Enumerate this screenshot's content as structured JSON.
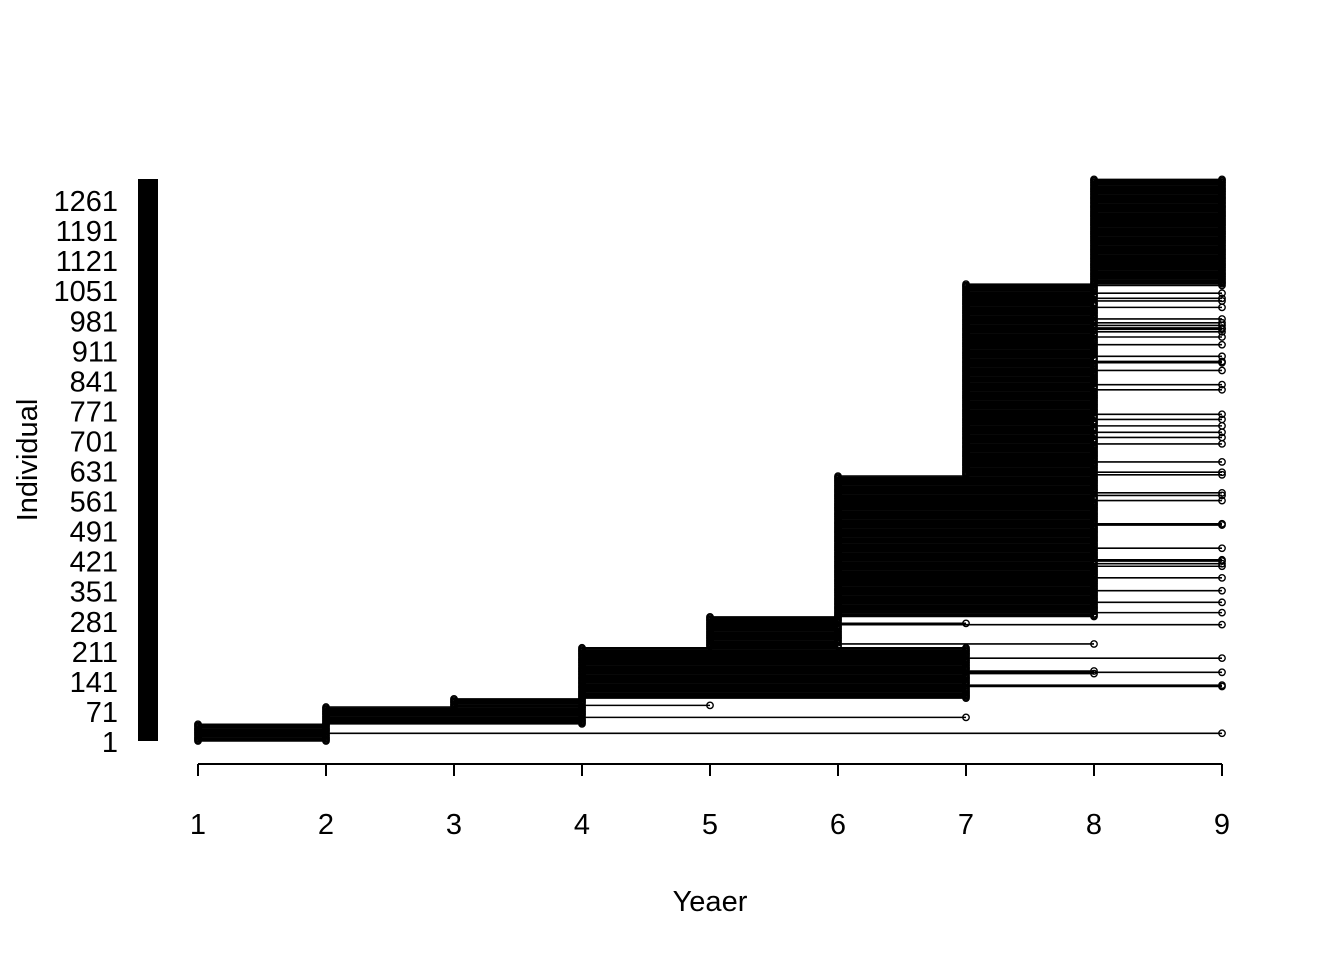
{
  "chart_data": {
    "type": "line",
    "title": "",
    "xlabel": "Yeaer",
    "ylabel": "Individual",
    "x_ticks": [
      1,
      2,
      3,
      4,
      5,
      6,
      7,
      8,
      9
    ],
    "y_ticks": [
      1,
      71,
      141,
      211,
      281,
      351,
      421,
      491,
      561,
      631,
      701,
      771,
      841,
      911,
      981,
      1051,
      1121,
      1191,
      1261
    ],
    "xlim": [
      1,
      9
    ],
    "ylim": [
      1,
      1310
    ],
    "grid": false,
    "legend": "none",
    "line_color": "#000000",
    "entry_groups": [
      {
        "entry_year": 1,
        "first_id": 1,
        "last_id": 40,
        "exit_year": 2
      },
      {
        "entry_year": 2,
        "first_id": 41,
        "last_id": 80,
        "exit_year": 4
      },
      {
        "entry_year": 3,
        "first_id": 81,
        "last_id": 100,
        "exit_year": 4
      },
      {
        "entry_year": 4,
        "first_id": 101,
        "last_id": 220,
        "exit_year": 7
      },
      {
        "entry_year": 5,
        "first_id": 221,
        "last_id": 290,
        "exit_year": 6
      },
      {
        "entry_year": 6,
        "first_id": 291,
        "last_id": 620,
        "exit_year": 8
      },
      {
        "entry_year": 7,
        "first_id": 621,
        "last_id": 1065,
        "exit_year": 8
      },
      {
        "entry_year": 8,
        "first_id": 1066,
        "last_id": 1310,
        "exit_year": 9
      }
    ]
  }
}
